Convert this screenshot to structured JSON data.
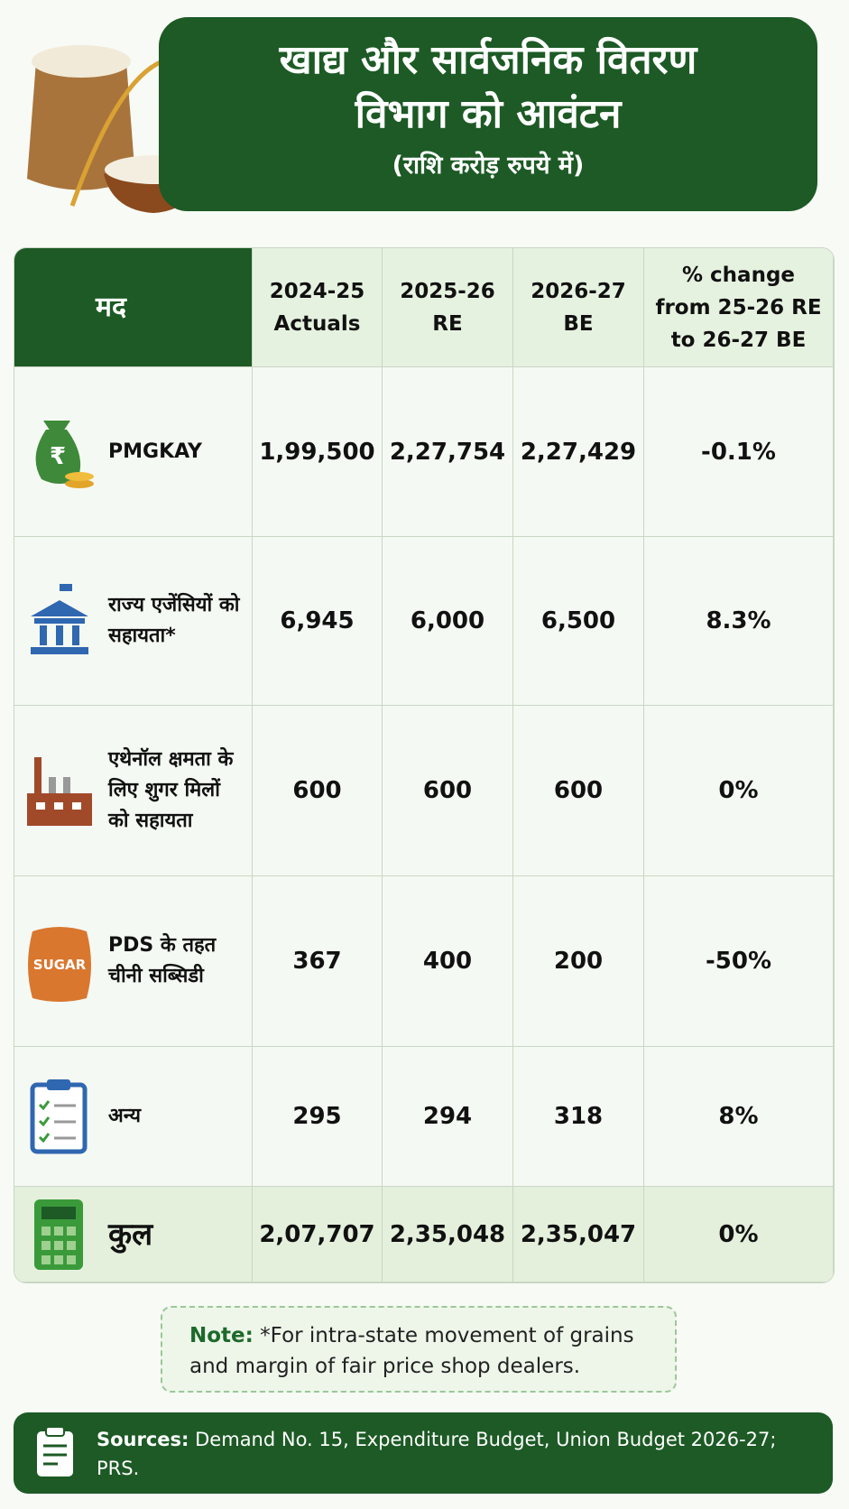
{
  "header": {
    "title_lines": [
      "खाद्य और सार्वजनिक वितरण",
      "विभाग को आवंटन"
    ],
    "subtitle": "(राशि करोड़ रुपये में)"
  },
  "table": {
    "columns": [
      "मद",
      "2024-25 Actuals",
      "2025-26 RE",
      "2026-27 BE",
      "% change from 25-26 RE to 26-27 BE"
    ],
    "rows": [
      {
        "icon_label": "₹",
        "cells": [
          "PMGKAY",
          "1,99,500",
          "2,27,754",
          "2,27,429",
          "-0.1%"
        ]
      },
      {
        "cells": [
          "राज्य एजेंसियों को सहायता*",
          "6,945",
          "6,000",
          "6,500",
          "8.3%"
        ]
      },
      {
        "cells": [
          "एथेनॉल क्षमता के लिए शुगर मिलों को सहायता",
          "600",
          "600",
          "600",
          "0%"
        ]
      },
      {
        "icon_label": "SUGAR",
        "cells": [
          "PDS के तहत चीनी सब्सिडी",
          "367",
          "400",
          "200",
          "-50%"
        ]
      },
      {
        "cells": [
          "अन्य",
          "295",
          "294",
          "318",
          "8%"
        ]
      },
      {
        "cells": [
          "कुल",
          "2,07,707",
          "2,35,048",
          "2,35,047",
          "0%"
        ]
      }
    ]
  },
  "note": {
    "label": "Note:",
    "text": "*For intra-state movement of grains and margin of fair price shop dealers."
  },
  "sources": {
    "label": "Sources:",
    "text": "Demand No. 15, Expenditure Budget, Union Budget 2026-27; PRS."
  }
}
